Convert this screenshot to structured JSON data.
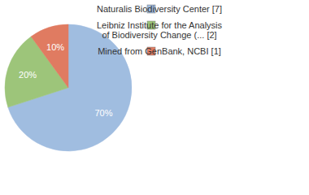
{
  "chart_data": {
    "type": "pie",
    "categories": [
      "Naturalis Biodiversity Center [7]",
      "Leibniz Institute for the Analysis of Biodiversity Change (... [2]",
      "Mined from GenBank, NCBI [1]"
    ],
    "values": [
      70,
      20,
      10
    ],
    "value_labels": [
      "70%",
      "20%",
      "10%"
    ],
    "colors": [
      "#a0bde0",
      "#9dc57a",
      "#e07b61"
    ],
    "data_labels": true,
    "legend": "top-right"
  }
}
